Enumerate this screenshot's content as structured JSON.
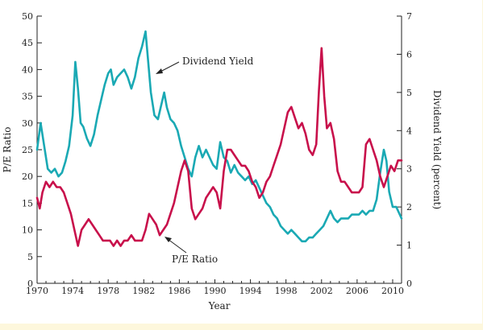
{
  "chart_data": {
    "type": "line",
    "title": "",
    "xlabel": "Year",
    "ylabel_left": "P/E Ratio",
    "ylabel_right": "Dividend Yield (percent)",
    "xlim": [
      1970,
      2011
    ],
    "ylim_left": [
      0,
      50
    ],
    "ylim_right": [
      0,
      7
    ],
    "x_ticks": [
      1970,
      1974,
      1978,
      1982,
      1986,
      1990,
      1994,
      1998,
      2002,
      2006,
      2010
    ],
    "y_ticks_left": [
      0,
      5,
      10,
      15,
      20,
      25,
      30,
      35,
      40,
      45,
      50
    ],
    "y_ticks_right": [
      0,
      1,
      2,
      3,
      4,
      5,
      6,
      7
    ],
    "grid": false,
    "series": [
      {
        "name": "Dividend Yield",
        "axis": "right",
        "color": "#1aa9b4",
        "x": [
          1970,
          1970.4,
          1970.8,
          1971.2,
          1971.6,
          1972,
          1972.4,
          1972.8,
          1973.2,
          1973.6,
          1974,
          1974.3,
          1974.6,
          1974.9,
          1975.2,
          1975.6,
          1976,
          1976.4,
          1976.8,
          1977.2,
          1977.6,
          1978,
          1978.3,
          1978.6,
          1979,
          1979.4,
          1979.8,
          1980.2,
          1980.6,
          1981,
          1981.4,
          1981.8,
          1982.2,
          1982.5,
          1982.8,
          1983.2,
          1983.6,
          1984,
          1984.3,
          1984.6,
          1985,
          1985.4,
          1985.8,
          1986.2,
          1986.6,
          1987,
          1987.4,
          1987.8,
          1988.2,
          1988.6,
          1989,
          1989.4,
          1989.8,
          1990.2,
          1990.6,
          1991,
          1991.4,
          1991.8,
          1992.2,
          1992.6,
          1993,
          1993.4,
          1993.8,
          1994.2,
          1994.6,
          1995,
          1995.4,
          1995.8,
          1996.2,
          1996.6,
          1997,
          1997.4,
          1997.8,
          1998.2,
          1998.6,
          1999,
          1999.4,
          1999.8,
          2000.2,
          2000.6,
          2001,
          2001.4,
          2001.8,
          2002.2,
          2002.6,
          2003,
          2003.4,
          2003.8,
          2004.2,
          2004.6,
          2005,
          2005.4,
          2005.8,
          2006.2,
          2006.6,
          2007,
          2007.4,
          2007.8,
          2008.2,
          2008.6,
          2009,
          2009.3,
          2009.6,
          2010,
          2010.4,
          2010.8,
          2011
        ],
        "values": [
          3.5,
          4.2,
          3.6,
          3.0,
          2.9,
          3.0,
          2.8,
          2.9,
          3.2,
          3.6,
          4.4,
          5.8,
          5.1,
          4.2,
          4.1,
          3.8,
          3.6,
          3.9,
          4.4,
          4.8,
          5.2,
          5.5,
          5.6,
          5.2,
          5.4,
          5.5,
          5.6,
          5.4,
          5.1,
          5.4,
          5.9,
          6.2,
          6.6,
          5.8,
          5.0,
          4.4,
          4.3,
          4.7,
          5.0,
          4.6,
          4.3,
          4.2,
          4.0,
          3.6,
          3.3,
          3.0,
          2.8,
          3.3,
          3.6,
          3.3,
          3.5,
          3.3,
          3.1,
          3.0,
          3.7,
          3.3,
          3.2,
          2.9,
          3.1,
          2.9,
          2.8,
          2.7,
          2.8,
          2.6,
          2.7,
          2.5,
          2.3,
          2.1,
          2.0,
          1.8,
          1.7,
          1.5,
          1.4,
          1.3,
          1.4,
          1.3,
          1.2,
          1.1,
          1.1,
          1.2,
          1.2,
          1.3,
          1.4,
          1.5,
          1.7,
          1.9,
          1.7,
          1.6,
          1.7,
          1.7,
          1.7,
          1.8,
          1.8,
          1.8,
          1.9,
          1.8,
          1.9,
          1.9,
          2.2,
          2.9,
          3.5,
          3.2,
          2.4,
          2.0,
          2.0,
          1.8,
          1.7
        ],
        "label": "Dividend Yield"
      },
      {
        "name": "P/E Ratio",
        "axis": "left",
        "color": "#c8104b",
        "x": [
          1970,
          1970.3,
          1970.6,
          1971,
          1971.4,
          1971.8,
          1972.2,
          1972.6,
          1973,
          1973.4,
          1973.8,
          1974.2,
          1974.6,
          1975,
          1975.4,
          1975.8,
          1976.2,
          1976.6,
          1977,
          1977.4,
          1977.8,
          1978.2,
          1978.6,
          1979,
          1979.4,
          1979.8,
          1980.2,
          1980.6,
          1981,
          1981.4,
          1981.8,
          1982.2,
          1982.6,
          1983,
          1983.4,
          1983.8,
          1984.2,
          1984.6,
          1985,
          1985.4,
          1985.8,
          1986.2,
          1986.6,
          1987,
          1987.4,
          1987.8,
          1988.2,
          1988.6,
          1989,
          1989.4,
          1989.8,
          1990.2,
          1990.6,
          1991,
          1991.4,
          1991.8,
          1992.2,
          1992.6,
          1993,
          1993.4,
          1993.8,
          1994.2,
          1994.6,
          1995,
          1995.4,
          1995.8,
          1996.2,
          1996.6,
          1997,
          1997.4,
          1997.8,
          1998.2,
          1998.6,
          1999,
          1999.4,
          1999.8,
          2000.2,
          2000.6,
          2001,
          2001.4,
          2001.7,
          2002,
          2002.3,
          2002.6,
          2003,
          2003.4,
          2003.8,
          2004.2,
          2004.6,
          2005,
          2005.4,
          2005.8,
          2006.2,
          2006.6,
          2007,
          2007.4,
          2007.8,
          2008.2,
          2008.6,
          2009,
          2009.4,
          2009.8,
          2010.2,
          2010.6,
          2011
        ],
        "values": [
          16,
          14,
          17,
          19,
          18,
          19,
          18,
          18,
          17,
          15,
          13,
          10,
          7,
          10,
          11,
          12,
          11,
          10,
          9,
          8,
          8,
          8,
          7,
          8,
          7,
          8,
          8,
          9,
          8,
          8,
          8,
          10,
          13,
          12,
          11,
          9,
          10,
          11,
          13,
          15,
          18,
          21,
          23,
          21,
          14,
          12,
          13,
          14,
          16,
          17,
          18,
          17,
          14,
          21,
          25,
          25,
          24,
          23,
          22,
          22,
          21,
          19,
          18,
          16,
          17,
          19,
          20,
          22,
          24,
          26,
          29,
          32,
          33,
          31,
          29,
          30,
          28,
          25,
          24,
          26,
          36,
          44,
          35,
          29,
          30,
          27,
          21,
          19,
          19,
          18,
          17,
          17,
          17,
          18,
          26,
          27,
          25,
          23,
          20,
          18,
          20,
          22,
          21,
          23,
          23
        ]
      }
    ],
    "annotations": [
      {
        "text": "Dividend Yield"
      },
      {
        "text": "P/E Ratio"
      }
    ]
  }
}
